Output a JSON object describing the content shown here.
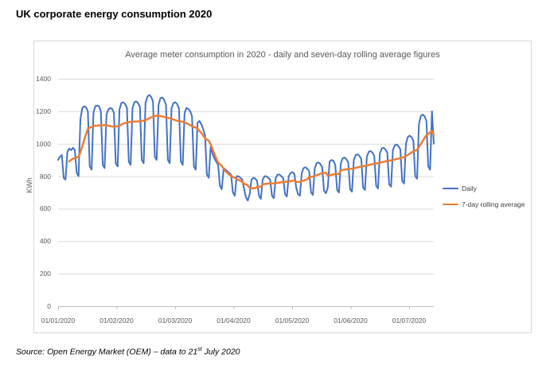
{
  "page": {
    "title": "UK corporate energy consumption 2020",
    "source": {
      "pre": "Source: Open Energy Market (OEM) – data to 21",
      "sup": "st",
      "post": " July 2020"
    }
  },
  "chart_data": {
    "type": "line",
    "title": "Average meter consumption in 2020 - daily and seven-day rolling average figures",
    "xlabel": "",
    "ylabel": "KWh",
    "ylim": [
      0,
      1400
    ],
    "y_ticks": [
      0,
      200,
      400,
      600,
      800,
      1000,
      1200,
      1400
    ],
    "x_tick_labels": [
      "01/01/2020",
      "01/02/2020",
      "01/03/2020",
      "01/04/2020",
      "01/05/2020",
      "01/06/2020",
      "01/07/2020"
    ],
    "grid": true,
    "legend_position": "right",
    "colors": {
      "daily": "#4472C4",
      "rolling": "#ED7D31",
      "gridline": "#D9D9D9",
      "axis_line": "#BFBFBF",
      "axis_text": "#595959"
    },
    "series": [
      {
        "name": "Daily",
        "color": "#4472C4",
        "values": [
          900,
          920,
          930,
          790,
          780,
          950,
          970,
          960,
          975,
          960,
          820,
          800,
          1150,
          1220,
          1230,
          1225,
          1200,
          860,
          840,
          1190,
          1230,
          1235,
          1230,
          1200,
          870,
          850,
          1180,
          1210,
          1220,
          1215,
          1190,
          880,
          860,
          1210,
          1250,
          1255,
          1245,
          1220,
          890,
          870,
          1220,
          1255,
          1260,
          1250,
          1225,
          900,
          880,
          1250,
          1290,
          1300,
          1290,
          1260,
          920,
          900,
          1240,
          1280,
          1285,
          1270,
          1240,
          900,
          880,
          1220,
          1250,
          1255,
          1245,
          1215,
          890,
          870,
          1190,
          1220,
          1215,
          1200,
          1170,
          860,
          840,
          1130,
          1140,
          1120,
          1090,
          1050,
          810,
          790,
          980,
          940,
          910,
          890,
          870,
          740,
          720,
          850,
          840,
          830,
          820,
          810,
          700,
          680,
          800,
          800,
          790,
          780,
          720,
          670,
          650,
          690,
          780,
          790,
          785,
          770,
          680,
          660,
          780,
          800,
          800,
          790,
          780,
          680,
          665,
          790,
          810,
          810,
          800,
          790,
          690,
          675,
          800,
          820,
          825,
          815,
          730,
          690,
          680,
          820,
          850,
          855,
          845,
          830,
          700,
          685,
          850,
          880,
          885,
          875,
          855,
          710,
          695,
          730,
          890,
          900,
          895,
          870,
          715,
          700,
          880,
          910,
          915,
          905,
          885,
          720,
          705,
          900,
          930,
          935,
          925,
          905,
          730,
          715,
          920,
          950,
          955,
          945,
          925,
          740,
          725,
          940,
          970,
          975,
          965,
          945,
          750,
          735,
          960,
          990,
          995,
          985,
          965,
          770,
          755,
          1000,
          1040,
          1050,
          1040,
          1020,
          800,
          785,
          1120,
          1170,
          1180,
          1170,
          1140,
          860,
          840,
          1200,
          1000
        ]
      },
      {
        "name": "7-day rolling average",
        "color": "#ED7D31",
        "derived_from": "Daily",
        "window": 7
      }
    ]
  }
}
